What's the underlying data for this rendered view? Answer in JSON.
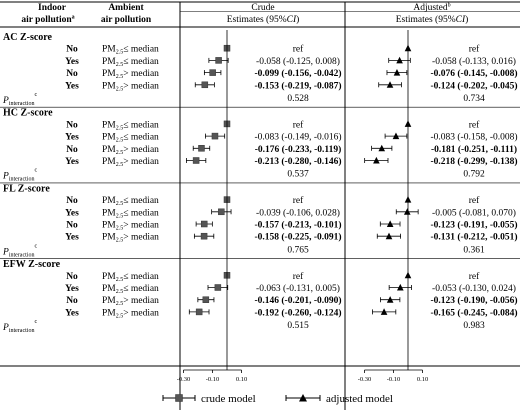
{
  "header": {
    "col1_line1": "Indoor",
    "col1_line2": "air pollution",
    "col1_sup": "a",
    "col2_line1": "Ambient",
    "col2_line2": "air pollution",
    "crude_title": "Crude",
    "adjusted_title": "Adjusted",
    "adjusted_sup": "b",
    "estimates_label": "Estimates (95%",
    "estimates_ci": "CI",
    "estimates_close": ")"
  },
  "p_label": {
    "main": "P",
    "sub": "interaction",
    "sup": "c"
  },
  "pm_prefix": "PM",
  "pm_sub": "2.5",
  "legend": {
    "crude": "crude model",
    "adjusted": "adjusted model"
  },
  "chart_data": {
    "type": "forest",
    "x_ticks": [
      -0.3,
      -0.1,
      0.1
    ],
    "x_tick_labels": [
      "-0.30",
      "-0.10",
      "0.10"
    ],
    "xlim": [
      -0.37,
      0.16
    ],
    "reference_line": 0,
    "series": [
      {
        "name": "crude model",
        "marker": "square"
      },
      {
        "name": "adjusted model",
        "marker": "triangle"
      }
    ],
    "sections": [
      {
        "title": "AC Z-score",
        "p_crude": "0.528",
        "p_adjusted": "0.734",
        "rows": [
          {
            "indoor": "No",
            "ambient": "≤ median",
            "crude": {
              "est": 0,
              "lo": 0,
              "hi": 0,
              "text": "ref",
              "bold": false
            },
            "adjusted": {
              "est": 0,
              "lo": 0,
              "hi": 0,
              "text": "ref",
              "bold": false
            }
          },
          {
            "indoor": "Yes",
            "ambient": "≤ median",
            "crude": {
              "est": -0.058,
              "lo": -0.125,
              "hi": 0.008,
              "text": "-0.058 (-0.125, 0.008)",
              "bold": false
            },
            "adjusted": {
              "est": -0.058,
              "lo": -0.133,
              "hi": 0.016,
              "text": "-0.058 (-0.133, 0.016)",
              "bold": false
            }
          },
          {
            "indoor": "No",
            "ambient": "> median",
            "crude": {
              "est": -0.099,
              "lo": -0.156,
              "hi": -0.042,
              "text": "-0.099 (-0.156, -0.042)",
              "bold": true
            },
            "adjusted": {
              "est": -0.076,
              "lo": -0.145,
              "hi": -0.008,
              "text": "-0.076 (-0.145, -0.008)",
              "bold": true
            }
          },
          {
            "indoor": "Yes",
            "ambient": "> median",
            "crude": {
              "est": -0.153,
              "lo": -0.219,
              "hi": -0.087,
              "text": "-0.153 (-0.219, -0.087)",
              "bold": true
            },
            "adjusted": {
              "est": -0.124,
              "lo": -0.202,
              "hi": -0.045,
              "text": "-0.124 (-0.202, -0.045)",
              "bold": true
            }
          }
        ]
      },
      {
        "title": "HC Z-score",
        "p_crude": "0.537",
        "p_adjusted": "0.792",
        "rows": [
          {
            "indoor": "No",
            "ambient": "≤ median",
            "crude": {
              "est": 0,
              "lo": 0,
              "hi": 0,
              "text": "ref",
              "bold": false
            },
            "adjusted": {
              "est": 0,
              "lo": 0,
              "hi": 0,
              "text": "ref",
              "bold": false
            }
          },
          {
            "indoor": "Yes",
            "ambient": "≤ median",
            "crude": {
              "est": -0.083,
              "lo": -0.149,
              "hi": -0.016,
              "text": "-0.083 (-0.149, -0.016)",
              "bold": false
            },
            "adjusted": {
              "est": -0.083,
              "lo": -0.158,
              "hi": -0.008,
              "text": "-0.083 (-0.158, -0.008)",
              "bold": false
            }
          },
          {
            "indoor": "No",
            "ambient": "> median",
            "crude": {
              "est": -0.176,
              "lo": -0.233,
              "hi": -0.119,
              "text": "-0.176 (-0.233, -0.119)",
              "bold": true
            },
            "adjusted": {
              "est": -0.181,
              "lo": -0.251,
              "hi": -0.111,
              "text": "-0.181 (-0.251, -0.111)",
              "bold": true
            }
          },
          {
            "indoor": "Yes",
            "ambient": "> median",
            "crude": {
              "est": -0.213,
              "lo": -0.28,
              "hi": -0.146,
              "text": "-0.213 (-0.280, -0.146)",
              "bold": true
            },
            "adjusted": {
              "est": -0.218,
              "lo": -0.299,
              "hi": -0.138,
              "text": "-0.218 (-0.299, -0.138)",
              "bold": true
            }
          }
        ]
      },
      {
        "title": "FL Z-score",
        "p_crude": "0.765",
        "p_adjusted": "0.361",
        "rows": [
          {
            "indoor": "No",
            "ambient": "≤ median",
            "crude": {
              "est": 0,
              "lo": 0,
              "hi": 0,
              "text": "ref",
              "bold": false
            },
            "adjusted": {
              "est": 0,
              "lo": 0,
              "hi": 0,
              "text": "ref",
              "bold": false
            }
          },
          {
            "indoor": "Yes",
            "ambient": "≤ median",
            "crude": {
              "est": -0.039,
              "lo": -0.106,
              "hi": 0.028,
              "text": "-0.039 (-0.106, 0.028)",
              "bold": false
            },
            "adjusted": {
              "est": -0.005,
              "lo": -0.081,
              "hi": 0.07,
              "text": "-0.005 (-0.081, 0.070)",
              "bold": false
            }
          },
          {
            "indoor": "No",
            "ambient": "> median",
            "crude": {
              "est": -0.157,
              "lo": -0.213,
              "hi": -0.101,
              "text": "-0.157 (-0.213, -0.101)",
              "bold": true
            },
            "adjusted": {
              "est": -0.123,
              "lo": -0.191,
              "hi": -0.055,
              "text": "-0.123 (-0.191, -0.055)",
              "bold": true
            }
          },
          {
            "indoor": "Yes",
            "ambient": "> median",
            "crude": {
              "est": -0.158,
              "lo": -0.225,
              "hi": -0.091,
              "text": "-0.158 (-0.225, -0.091)",
              "bold": true
            },
            "adjusted": {
              "est": -0.131,
              "lo": -0.212,
              "hi": -0.051,
              "text": "-0.131 (-0.212, -0.051)",
              "bold": true
            }
          }
        ]
      },
      {
        "title": "EFW Z-score",
        "p_crude": "0.515",
        "p_adjusted": "0.983",
        "rows": [
          {
            "indoor": "No",
            "ambient": "≤ median",
            "crude": {
              "est": 0,
              "lo": 0,
              "hi": 0,
              "text": "ref",
              "bold": false
            },
            "adjusted": {
              "est": 0,
              "lo": 0,
              "hi": 0,
              "text": "ref",
              "bold": false
            }
          },
          {
            "indoor": "Yes",
            "ambient": "≤ median",
            "crude": {
              "est": -0.063,
              "lo": -0.131,
              "hi": 0.005,
              "text": "-0.063 (-0.131, 0.005)",
              "bold": false
            },
            "adjusted": {
              "est": -0.053,
              "lo": -0.13,
              "hi": 0.024,
              "text": "-0.053 (-0.130, 0.024)",
              "bold": false
            }
          },
          {
            "indoor": "No",
            "ambient": "> median",
            "crude": {
              "est": -0.146,
              "lo": -0.201,
              "hi": -0.09,
              "text": "-0.146 (-0.201, -0.090)",
              "bold": true
            },
            "adjusted": {
              "est": -0.123,
              "lo": -0.19,
              "hi": -0.056,
              "text": "-0.123 (-0.190, -0.056)",
              "bold": true
            }
          },
          {
            "indoor": "Yes",
            "ambient": "> median",
            "crude": {
              "est": -0.192,
              "lo": -0.26,
              "hi": -0.124,
              "text": "-0.192 (-0.260, -0.124)",
              "bold": true
            },
            "adjusted": {
              "est": -0.165,
              "lo": -0.245,
              "hi": -0.084,
              "text": "-0.165 (-0.245, -0.084)",
              "bold": true
            }
          }
        ]
      }
    ]
  }
}
